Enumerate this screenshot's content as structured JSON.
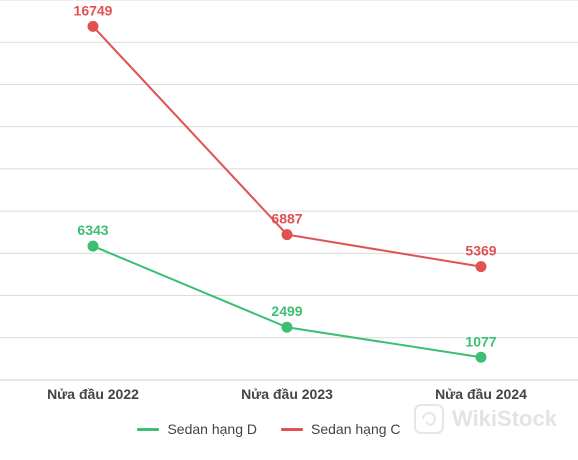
{
  "chart_data": {
    "type": "line",
    "categories": [
      "Nửa đầu 2022",
      "Nửa đầu 2023",
      "Nửa đầu 2024"
    ],
    "series": [
      {
        "name": "Sedan hạng D",
        "values": [
          6343,
          2499,
          1077
        ],
        "color": "#3cbf72"
      },
      {
        "name": "Sedan hạng C",
        "values": [
          16749,
          6887,
          5369
        ],
        "color": "#e05252"
      }
    ],
    "ylim": [
      0,
      18000
    ],
    "grid": true,
    "legend_position": "bottom",
    "xlabel": "",
    "ylabel": ""
  },
  "watermark": {
    "text": "WikiStock",
    "icon": "wikistock-logo-icon"
  }
}
